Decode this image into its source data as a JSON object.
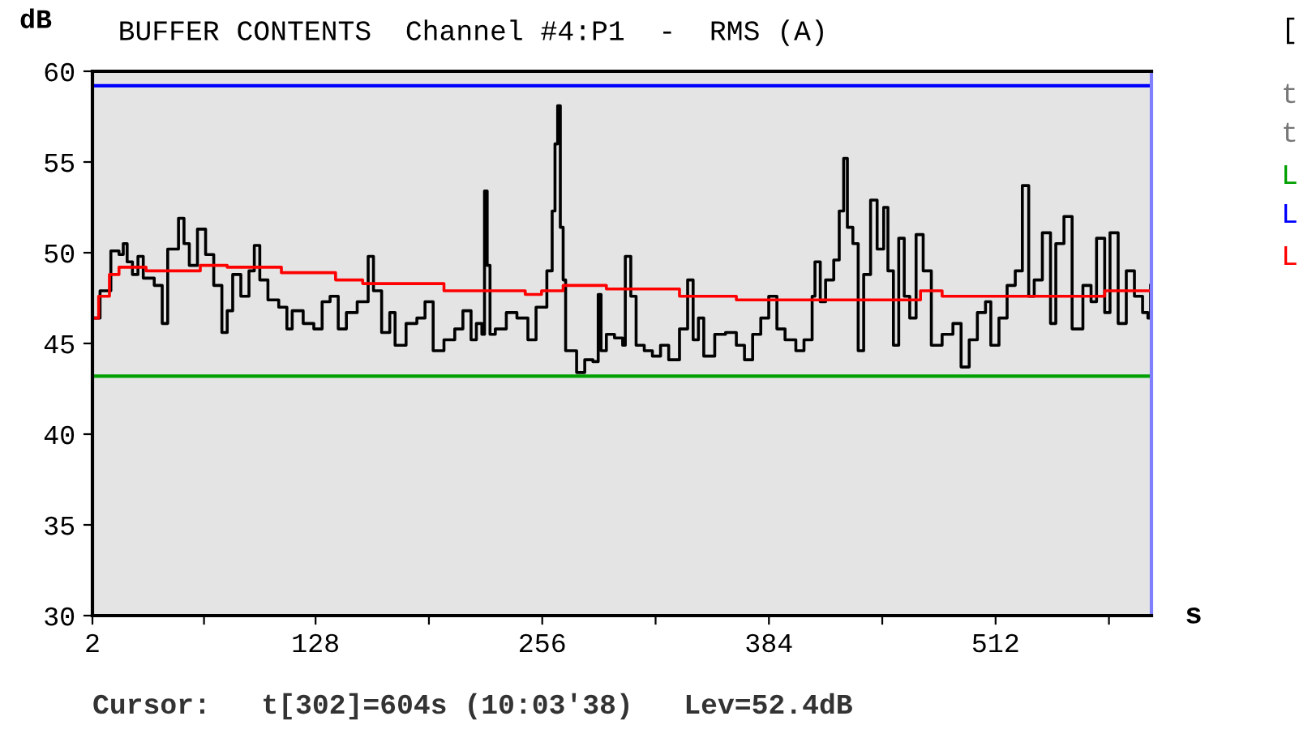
{
  "chart_data": {
    "type": "step",
    "title": "BUFFER CONTENTS  Channel #4:P1  -  RMS (A)",
    "xlabel": "s",
    "ylabel": "dB",
    "xlim": [
      2,
      600
    ],
    "ylim": [
      30,
      60
    ],
    "xticks": [
      2,
      {
        "value": 65,
        "label": null
      },
      128,
      {
        "value": 192,
        "label": null
      },
      256,
      {
        "value": 320,
        "label": null
      },
      384,
      {
        "value": 448,
        "label": null
      },
      512,
      {
        "value": 576,
        "label": null
      }
    ],
    "yticks": [
      30,
      35,
      40,
      45,
      50,
      55,
      60
    ],
    "grid": false,
    "legend": false,
    "marker": "none",
    "line_style": "solid",
    "ref_lines": [
      {
        "axis": "y",
        "value": 43.2,
        "label": "L",
        "color": "#00a000"
      },
      {
        "axis": "y",
        "value": 59.2,
        "label": "L",
        "color": "#0000ff"
      }
    ],
    "series": [
      {
        "color": "#000000",
        "x": [
          2,
          6.3,
          12.4,
          17,
          19.4,
          21.6,
          24.6,
          27.7,
          30.7,
          36.9,
          41.4,
          44.5,
          50.6,
          53.7,
          56.7,
          61.3,
          65.9,
          70.5,
          75.1,
          78.1,
          81.2,
          85.8,
          90.4,
          93.4,
          96.5,
          101.1,
          107.2,
          111.8,
          114.8,
          121,
          127,
          131.7,
          136.2,
          140.8,
          145.4,
          151.5,
          157.7,
          160.7,
          165.3,
          169.9,
          172.9,
          179.1,
          185.2,
          189.8,
          194.4,
          200.5,
          206.6,
          211.2,
          215.8,
          218.8,
          221.9,
          223.4,
          224.9,
          226.5,
          229.5,
          235.7,
          241.7,
          247.9,
          252.5,
          258.6,
          261.6,
          263.2,
          264.7,
          266.2,
          267.8,
          269.2,
          275.4,
          280,
          284.6,
          287.6,
          289.2,
          292.2,
          296.8,
          301.4,
          302.9,
          306,
          309,
          313.6,
          318.2,
          322.8,
          327.4,
          333.5,
          338.1,
          341.2,
          344.2,
          347.2,
          353.4,
          359.5,
          365.6,
          370.2,
          374.8,
          379.4,
          383.9,
          388.5,
          393.1,
          399.2,
          403.8,
          408.4,
          410,
          413,
          416,
          420.6,
          423.7,
          426.2,
          428.3,
          431.4,
          434.4,
          437.5,
          441.4,
          445.1,
          448.8,
          451.2,
          454.3,
          457.3,
          460.4,
          463.5,
          467.1,
          471.1,
          475.7,
          481.8,
          487.9,
          492.5,
          497.1,
          501.7,
          506.3,
          509.3,
          513.9,
          518.5,
          523.1,
          527.1,
          530.7,
          533.8,
          538.4,
          543,
          546,
          550.6,
          555.2,
          561.3,
          565.9,
          569,
          573.6,
          576.6,
          581.2,
          585.8,
          590.4,
          595,
          598,
          599.5
        ],
        "values": [
          46.4,
          47.9,
          50.1,
          49.9,
          50.5,
          49.5,
          48.8,
          49.8,
          48.6,
          48.2,
          46.1,
          50.2,
          51.9,
          50.5,
          49.3,
          51.3,
          49.9,
          48.2,
          45.6,
          46.8,
          48.8,
          47.6,
          49.0,
          50.4,
          48.5,
          47.4,
          47.0,
          45.8,
          46.8,
          46.1,
          45.8,
          47.3,
          47.6,
          45.8,
          46.7,
          47.3,
          49.8,
          47.9,
          45.6,
          46.7,
          44.9,
          46.1,
          46.4,
          47.3,
          44.6,
          45.2,
          45.8,
          46.8,
          45.2,
          46.1,
          45.5,
          53.4,
          49.3,
          45.5,
          45.8,
          46.7,
          46.4,
          45.2,
          47.0,
          49.0,
          52.3,
          56.0,
          58.1,
          51.4,
          48.5,
          44.6,
          43.4,
          44.1,
          44.0,
          47.7,
          44.6,
          45.5,
          45.3,
          44.9,
          49.8,
          47.6,
          44.9,
          44.6,
          44.3,
          44.9,
          44.1,
          45.8,
          48.5,
          45.2,
          46.4,
          44.3,
          45.5,
          45.6,
          44.9,
          44.1,
          45.5,
          46.4,
          47.6,
          45.8,
          45.2,
          44.6,
          45.2,
          47.6,
          49.5,
          47.3,
          48.5,
          49.6,
          52.3,
          55.2,
          51.4,
          50.5,
          44.6,
          48.8,
          52.9,
          50.2,
          52.5,
          49.0,
          44.9,
          50.8,
          47.6,
          46.4,
          51.0,
          49.0,
          44.9,
          45.5,
          46.1,
          43.7,
          45.2,
          46.7,
          47.3,
          44.9,
          46.4,
          48.2,
          49.0,
          53.7,
          47.6,
          48.5,
          51.1,
          46.1,
          50.5,
          52.0,
          45.8,
          48.2,
          47.3,
          50.8,
          46.7,
          51.1,
          46.1,
          49.0,
          47.6,
          46.7,
          46.4,
          48.2
        ]
      },
      {
        "name": "L",
        "color": "#ff0000",
        "x": [
          2,
          5.5,
          11.6,
          17,
          32.3,
          47.6,
          62.9,
          78.1,
          108.7,
          139.3,
          154.6,
          200.5,
          246.4,
          255.6,
          267.8,
          292.2,
          333.5,
          365.6,
          408.4,
          469.6,
          481.8,
          567.4,
          573.6,
          599.5
        ],
        "values": [
          46.4,
          47.6,
          48.8,
          49.2,
          49.0,
          49.0,
          49.3,
          49.2,
          48.9,
          48.5,
          48.3,
          47.9,
          47.7,
          47.9,
          48.2,
          48.0,
          47.6,
          47.4,
          47.4,
          47.9,
          47.6,
          47.6,
          47.9,
          47.9
        ]
      }
    ],
    "annotations": [
      "Cursor:   t[302]=604s (10:03'38)   Lev=52.4dB",
      "[",
      "t",
      "t"
    ]
  }
}
